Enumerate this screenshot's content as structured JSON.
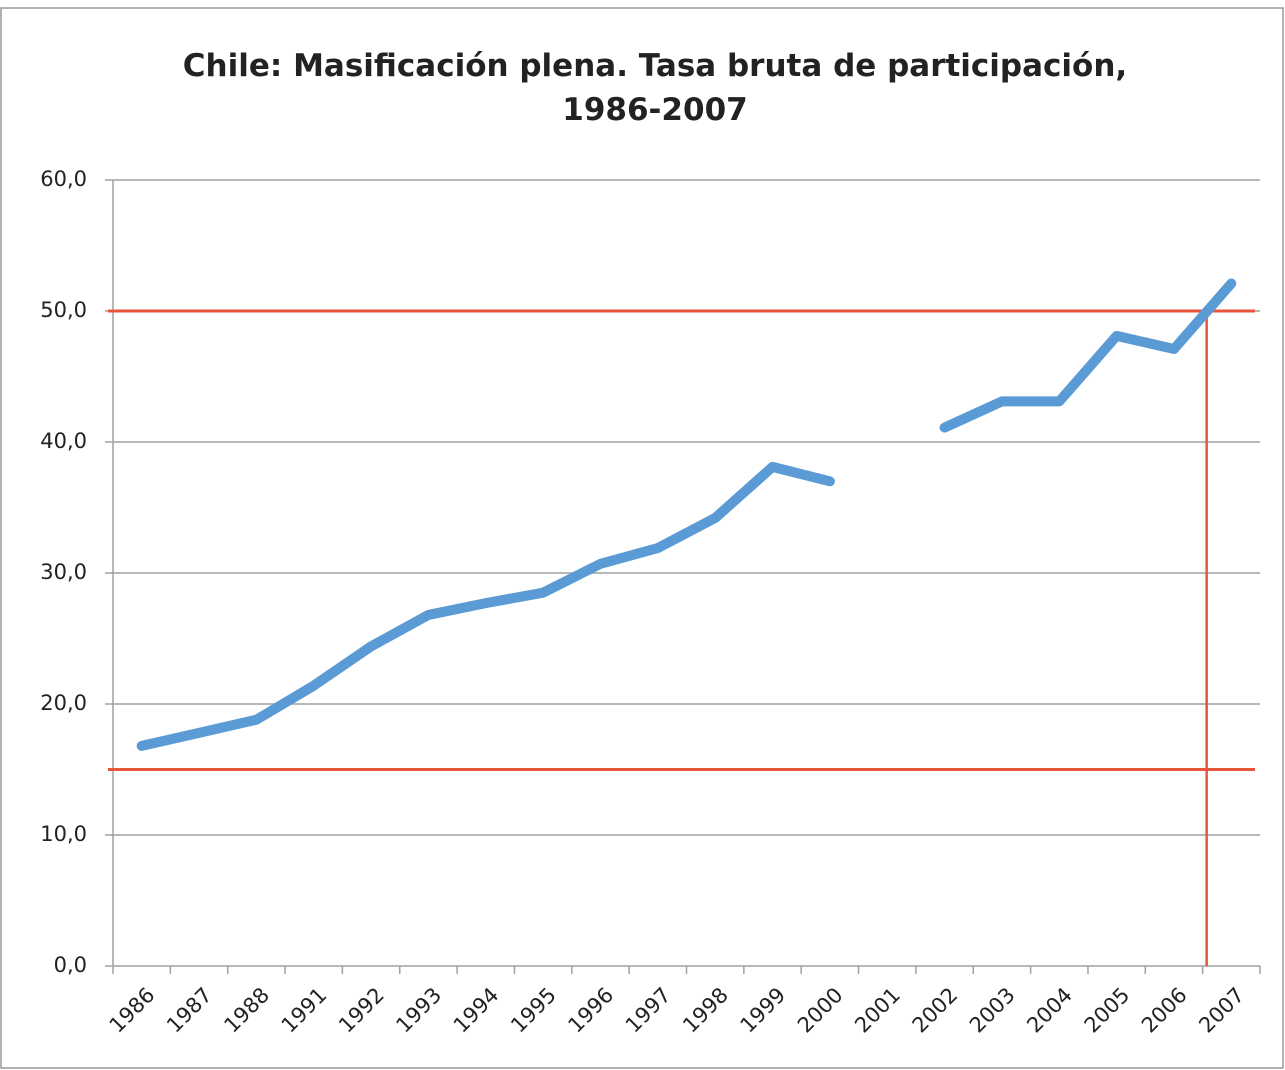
{
  "chart_data": {
    "type": "line",
    "title": "Chile: Masificación plena. Tasa bruta de participación, 1986-2007",
    "categories": [
      "1986",
      "1987",
      "1988",
      "1991",
      "1992",
      "1993",
      "1994",
      "1995",
      "1996",
      "1997",
      "1998",
      "1999",
      "2000",
      "2001",
      "2002",
      "2003",
      "2004",
      "2005",
      "2006",
      "2007"
    ],
    "values": [
      16.8,
      17.8,
      18.8,
      21.4,
      24.4,
      26.8,
      27.7,
      28.5,
      30.7,
      31.9,
      34.2,
      38.1,
      37.0,
      null,
      41.1,
      43.1,
      43.1,
      48.1,
      47.1,
      52.1
    ],
    "color": "#5b9bd5",
    "ylim": [
      0,
      60
    ],
    "yticks": [
      {
        "value": 0,
        "label": "0,0"
      },
      {
        "value": 10,
        "label": "10,0"
      },
      {
        "value": 20,
        "label": "20,0"
      },
      {
        "value": 30,
        "label": "30,0"
      },
      {
        "value": 40,
        "label": "40,0"
      },
      {
        "value": 50,
        "label": "50,0"
      },
      {
        "value": 60,
        "label": "60,0"
      }
    ],
    "grid": true,
    "reference_lines": [
      50,
      15
    ],
    "reference_color": "#e8553a"
  }
}
